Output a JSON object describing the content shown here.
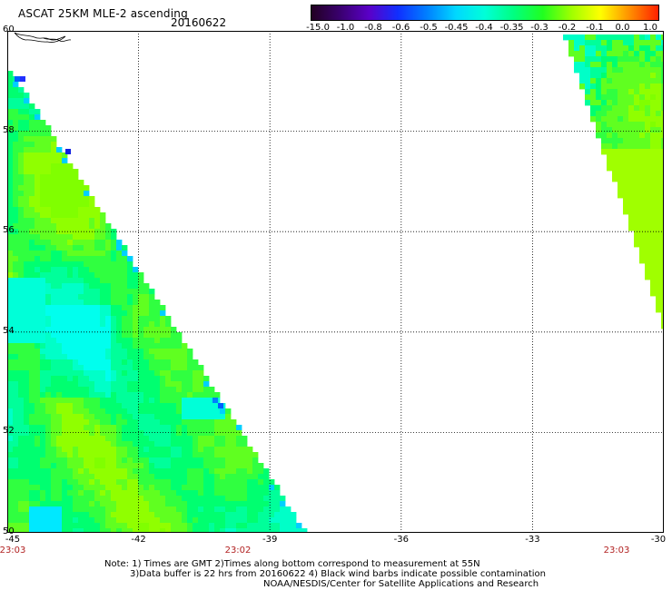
{
  "header": {
    "title": "ASCAT 25KM MLE-2 ascending",
    "date": "20160622"
  },
  "colorbar": {
    "labels": [
      "-15.0",
      "-1.0",
      "-0.8",
      "-0.6",
      "-0.5",
      "-0.45",
      "-0.4",
      "-0.35",
      "-0.3",
      "-0.2",
      "-0.1",
      "0.0",
      "1.0"
    ],
    "colors": [
      "#220022",
      "#3a0070",
      "#5a00c8",
      "#1030ff",
      "#0080ff",
      "#00d8ff",
      "#00ffd8",
      "#00ff80",
      "#20ff20",
      "#a0ff00",
      "#ffff00",
      "#ff9000",
      "#ff2000"
    ]
  },
  "axes": {
    "lat_labels": [
      "60",
      "58",
      "56",
      "54",
      "52",
      "50"
    ],
    "lon_labels": [
      "-45",
      "-42",
      "-39",
      "-36",
      "-33",
      "-30"
    ],
    "time_labels": [
      "23:03",
      "23:02",
      "23:03"
    ],
    "lon_range": [
      -45,
      -30
    ],
    "lat_range": [
      50,
      60
    ]
  },
  "notes": {
    "line1": "Note: 1) Times are GMT 2)Times along bottom correspond to measurement at 55N",
    "line2": "3)Data buffer is 22 hrs from 20160622 4) Black wind barbs indicate possible contamination",
    "line3": "NOAA/NESDIS/Center for Satellite Applications and Research"
  }
}
